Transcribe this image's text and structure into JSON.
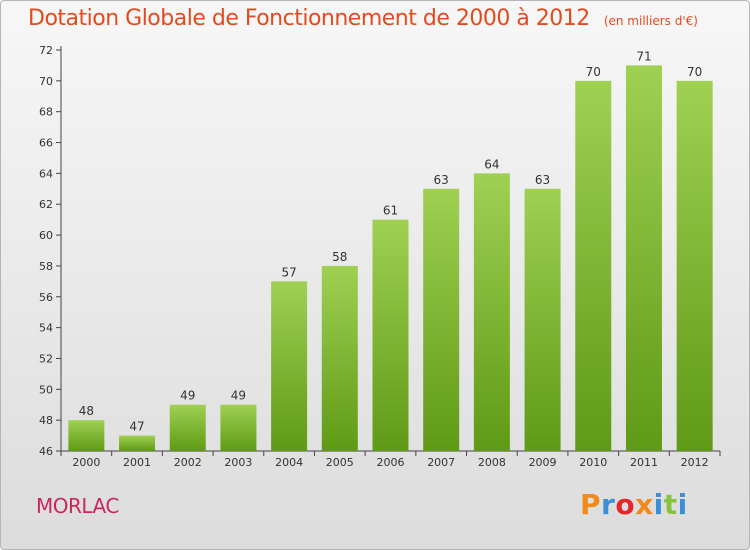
{
  "header": {
    "title": "Dotation Globale de Fonctionnement de 2000 à 2012",
    "unit": "(en milliers d'€)"
  },
  "footer": {
    "place": "MORLAC",
    "logo_text": "Proxiti"
  },
  "colors": {
    "title": "#e24b1f",
    "place": "#c9295a",
    "bar_light": "#9fd052",
    "bar_dark": "#5f9a16",
    "logo": [
      "#f08a1c",
      "#3a8fd6",
      "#e3262b",
      "#f08a1c",
      "#3a8fd6",
      "#86c440",
      "#3a8fd6"
    ]
  },
  "chart_data": {
    "type": "bar",
    "title": "Dotation Globale de Fonctionnement de 2000 à 2012",
    "subtitle": "(en milliers d'€)",
    "categories": [
      "2000",
      "2001",
      "2002",
      "2003",
      "2004",
      "2005",
      "2006",
      "2007",
      "2008",
      "2009",
      "2010",
      "2011",
      "2012"
    ],
    "values": [
      48,
      47,
      49,
      49,
      57,
      58,
      61,
      63,
      64,
      63,
      70,
      71,
      70
    ],
    "ylim": [
      46,
      72
    ],
    "yticks": [
      46,
      48,
      50,
      52,
      54,
      56,
      58,
      60,
      62,
      64,
      66,
      68,
      70,
      72
    ],
    "grid": false
  }
}
